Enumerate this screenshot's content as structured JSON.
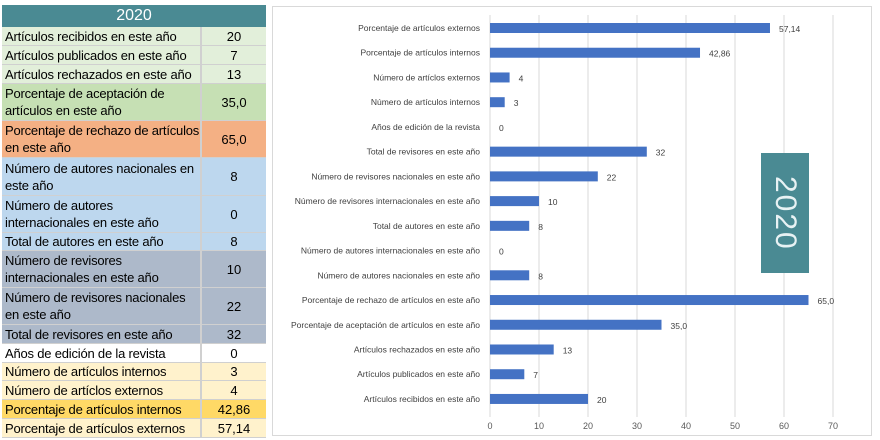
{
  "table": {
    "header": "2020",
    "rows": [
      {
        "label": "Artículos recibidos en este año",
        "value": "20",
        "color": "#e2efda"
      },
      {
        "label": "Artículos publicados en este año",
        "value": "7",
        "color": "#e2efda"
      },
      {
        "label": "Artículos rechazados en este año",
        "value": "13",
        "color": "#e2efda"
      },
      {
        "label": "Porcentaje de aceptación de artículos en este año",
        "value": "35,0",
        "color": "#c6e0b4"
      },
      {
        "label": "Porcentaje de rechazo de artículos en este año",
        "value": "65,0",
        "color": "#f4b084"
      },
      {
        "label": "Número de autores nacionales en este año",
        "value": "8",
        "color": "#bdd7ee"
      },
      {
        "label": "Número de autores internacionales en este año",
        "value": "0",
        "color": "#bdd7ee"
      },
      {
        "label": "Total de autores en este año",
        "value": "8",
        "color": "#bdd7ee"
      },
      {
        "label": "Número de revisores internacionales en este año",
        "value": "10",
        "color": "#adb9ca"
      },
      {
        "label": "Número de revisores nacionales en este año",
        "value": "22",
        "color": "#adb9ca"
      },
      {
        "label": "Total de revisores en este año",
        "value": "32",
        "color": "#adb9ca"
      },
      {
        "label": "Años de edición de la revista",
        "value": "0",
        "color": "#ffffff"
      },
      {
        "label": "Número de artículos internos",
        "value": "3",
        "color": "#fff2cc"
      },
      {
        "label": "Número de artíclos externos",
        "value": "4",
        "color": "#fff2cc"
      },
      {
        "label": "Porcentaje de artículos internos",
        "value": "42,86",
        "color": "#ffd966"
      },
      {
        "label": "Porcentaje de artículos externos",
        "value": "57,14",
        "color": "#fff2cc"
      }
    ]
  },
  "chart_data": {
    "type": "bar",
    "orientation": "horizontal",
    "categories": [
      "Porcentaje de artículos externos",
      "Porcentaje de artículos internos",
      "Número de artíclos externos",
      "Número de artículos internos",
      "Años de edición de la revista",
      "Total de revisores en este año",
      "Número de revisores nacionales en este año",
      "Número de revisores internacionales en este año",
      "Total de autores en este año",
      "Número de autores internacionales en este año",
      "Número de autores nacionales en este año",
      "Porcentaje de rechazo de artículos en este año",
      "Porcentaje de aceptación de artículos en este año",
      "Artículos rechazados en este año",
      "Artículos publicados en este año",
      "Artículos recibidos en este año"
    ],
    "values": [
      57.14,
      42.86,
      4,
      3,
      0,
      32,
      22,
      10,
      8,
      0,
      8,
      65.0,
      35.0,
      13,
      7,
      20
    ],
    "data_labels": [
      "57,14",
      "42,86",
      "4",
      "3",
      "0",
      "32",
      "22",
      "10",
      "8",
      "0",
      "8",
      "65,0",
      "35,0",
      "13",
      "7",
      "20"
    ],
    "xlim": [
      0,
      70
    ],
    "xticks": [
      "0",
      "10",
      "20",
      "30",
      "40",
      "50",
      "60",
      "70"
    ],
    "grid": "vertical",
    "bar_color": "#4472c4",
    "annotation": "2020",
    "annotation_color": "#4a8a93"
  }
}
